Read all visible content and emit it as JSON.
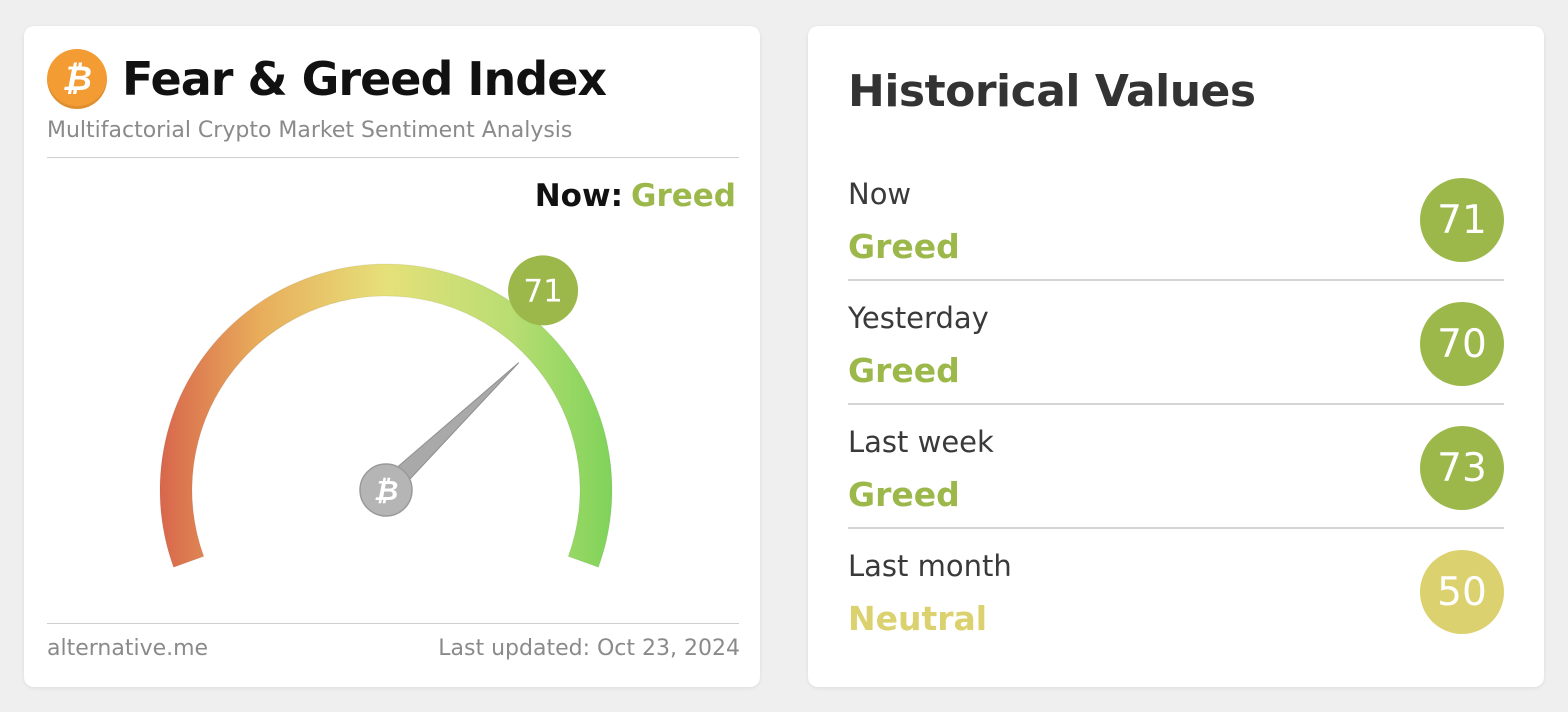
{
  "colors": {
    "greed": "#9cb84a",
    "neutral": "#dbd16e",
    "coin": "#f39c33"
  },
  "index_card": {
    "logo_icon": "bitcoin-icon",
    "logo_glyph": "₿",
    "title": "Fear & Greed Index",
    "subtitle": "Multifactorial Crypto Market Sentiment Analysis",
    "now_label": "Now:",
    "now_value": "Greed",
    "gauge": {
      "value": 71,
      "value_label": "71",
      "min": 0,
      "max": 100,
      "center_icon": "bitcoin-icon"
    },
    "footer_site": "alternative.me",
    "footer_updated": "Last updated: Oct 23, 2024"
  },
  "historical": {
    "title": "Historical Values",
    "rows": [
      {
        "label": "Now",
        "classification": "Greed",
        "value": "71",
        "color": "#9cb84a"
      },
      {
        "label": "Yesterday",
        "classification": "Greed",
        "value": "70",
        "color": "#9cb84a"
      },
      {
        "label": "Last week",
        "classification": "Greed",
        "value": "73",
        "color": "#9cb84a"
      },
      {
        "label": "Last month",
        "classification": "Neutral",
        "value": "50",
        "color": "#dbd16e"
      }
    ]
  }
}
